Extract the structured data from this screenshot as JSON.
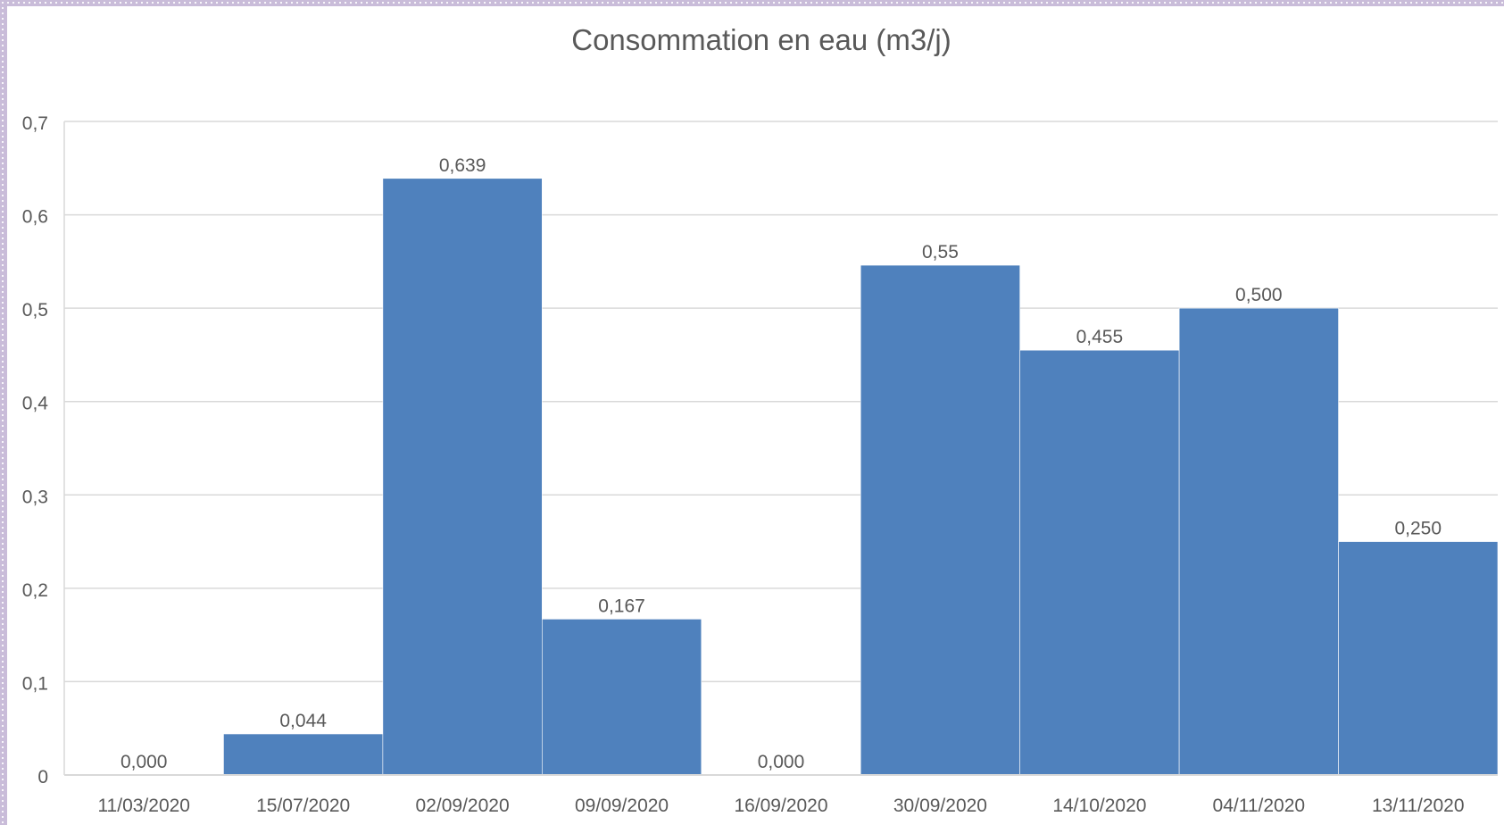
{
  "chart_data": {
    "type": "bar",
    "title": "Consommation en eau (m3/j)",
    "xlabel": "",
    "ylabel": "",
    "categories": [
      "11/03/2020",
      "15/07/2020",
      "02/09/2020",
      "09/09/2020",
      "16/09/2020",
      "30/09/2020",
      "14/10/2020",
      "04/11/2020",
      "13/11/2020"
    ],
    "values": [
      0.0,
      0.044,
      0.639,
      0.167,
      0.0,
      0.546,
      0.455,
      0.5,
      0.25
    ],
    "data_labels": [
      "0,000",
      "0,044",
      "0,639",
      "0,167",
      "0,000",
      "0,55",
      "0,455",
      "0,500",
      "0,250"
    ],
    "ylim": [
      0,
      0.7
    ],
    "yticks": [
      0,
      0.1,
      0.2,
      0.3,
      0.4,
      0.5,
      0.6,
      0.7
    ],
    "ytick_labels": [
      "0",
      "0,1",
      "0,2",
      "0,3",
      "0,4",
      "0,5",
      "0,6",
      "0,7"
    ],
    "grid": true,
    "legend": "none",
    "bar_color": "#4f81bd",
    "grid_color": "#d9d9d9",
    "text_color": "#595959"
  }
}
